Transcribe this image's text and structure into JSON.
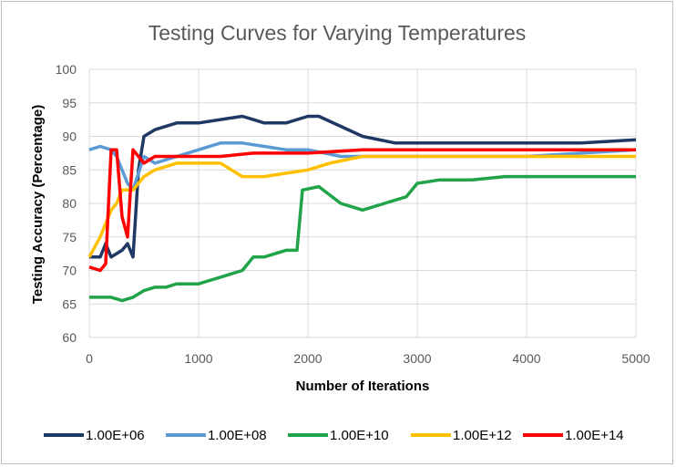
{
  "chart_data": {
    "type": "line",
    "title": "Testing Curves for Varying Temperatures",
    "xlabel": "Number of Iterations",
    "ylabel": "Testing Accuracy (Percentage)",
    "xlim": [
      0,
      5000
    ],
    "ylim": [
      60,
      100
    ],
    "xticks": [
      0,
      1000,
      2000,
      3000,
      4000,
      5000
    ],
    "yticks": [
      60,
      65,
      70,
      75,
      80,
      85,
      90,
      95,
      100
    ],
    "grid": true,
    "legend_position": "bottom",
    "series": [
      {
        "name": "1.00E+06",
        "color": "#203864",
        "x": [
          0,
          100,
          150,
          200,
          300,
          350,
          400,
          450,
          500,
          600,
          800,
          1000,
          1200,
          1400,
          1500,
          1600,
          1800,
          2000,
          2100,
          2300,
          2500,
          2800,
          3000,
          3500,
          4000,
          4500,
          5000
        ],
        "values": [
          72,
          72,
          74,
          72,
          73,
          74,
          72,
          85,
          90,
          91,
          92,
          92,
          92.5,
          93,
          92.5,
          92,
          92,
          93,
          93,
          91.5,
          90,
          89,
          89,
          89,
          89,
          89,
          89.5
        ]
      },
      {
        "name": "1.00E+08",
        "color": "#5b9bd5",
        "x": [
          0,
          100,
          200,
          250,
          300,
          350,
          400,
          500,
          600,
          800,
          1000,
          1200,
          1400,
          1600,
          1800,
          2000,
          2300,
          2500,
          3000,
          3500,
          4000,
          4500,
          5000
        ],
        "values": [
          88,
          88.5,
          88,
          87,
          85,
          83,
          82,
          87,
          86,
          87,
          88,
          89,
          89,
          88.5,
          88,
          88,
          87,
          87,
          87,
          87,
          87,
          87.5,
          88
        ]
      },
      {
        "name": "1.00E+10",
        "color": "#21a34a",
        "x": [
          0,
          100,
          200,
          300,
          400,
          500,
          600,
          700,
          800,
          900,
          1000,
          1100,
          1200,
          1300,
          1400,
          1500,
          1600,
          1700,
          1800,
          1900,
          1950,
          2100,
          2300,
          2500,
          2700,
          2900,
          3000,
          3200,
          3500,
          3800,
          4000,
          4200,
          4500,
          4800,
          5000
        ],
        "values": [
          66,
          66,
          66,
          65.5,
          66,
          67,
          67.5,
          67.5,
          68,
          68,
          68,
          68.5,
          69,
          69.5,
          70,
          72,
          72,
          72.5,
          73,
          73,
          82,
          82.5,
          80,
          79,
          80,
          81,
          83,
          83.5,
          83.5,
          84,
          84,
          84,
          84,
          84,
          84
        ]
      },
      {
        "name": "1.00E+12",
        "color": "#ffc000",
        "x": [
          0,
          100,
          200,
          250,
          300,
          400,
          500,
          600,
          800,
          1000,
          1200,
          1400,
          1600,
          1800,
          2000,
          2200,
          2500,
          3000,
          3500,
          4000,
          4500,
          5000
        ],
        "values": [
          72,
          75,
          79,
          80,
          82,
          82,
          84,
          85,
          86,
          86,
          86,
          84,
          84,
          84.5,
          85,
          86,
          87,
          87,
          87,
          87,
          87,
          87
        ]
      },
      {
        "name": "1.00E+14",
        "color": "#ff0000",
        "x": [
          0,
          100,
          150,
          200,
          250,
          300,
          350,
          400,
          500,
          600,
          800,
          1000,
          1200,
          1500,
          1800,
          2000,
          2500,
          3000,
          3500,
          4000,
          4500,
          5000
        ],
        "values": [
          70.5,
          70,
          71,
          88,
          88,
          78,
          75,
          88,
          86,
          87,
          87,
          87,
          87,
          87.5,
          87.5,
          87.5,
          88,
          88,
          88,
          88,
          88,
          88
        ]
      }
    ]
  }
}
